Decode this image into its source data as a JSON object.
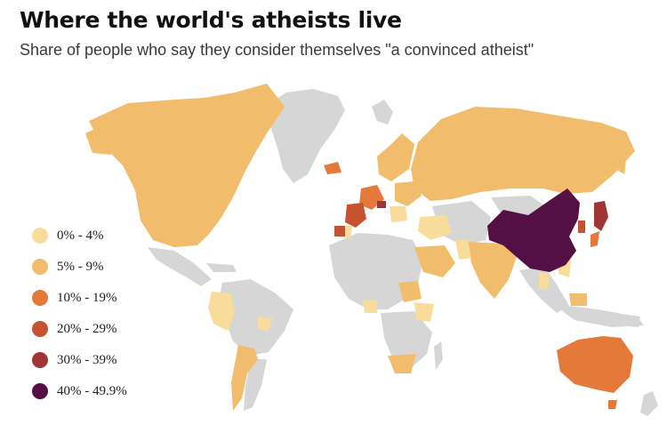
{
  "title": "Where the world's atheists live",
  "subtitle": "Share of people who say they consider themselves \"a convinced atheist\"",
  "colors": {
    "no_data": "#d6d6d6",
    "background": "#ffffff"
  },
  "legend": [
    {
      "label": "0% - 4%",
      "color": "#f7dc9c"
    },
    {
      "label": "5% - 9%",
      "color": "#f1bd6c"
    },
    {
      "label": "10% - 19%",
      "color": "#e4793a"
    },
    {
      "label": "20% - 29%",
      "color": "#c7522f"
    },
    {
      "label": "30% - 39%",
      "color": "#a13535"
    },
    {
      "label": "40% - 49.9%",
      "color": "#540f45"
    }
  ]
}
